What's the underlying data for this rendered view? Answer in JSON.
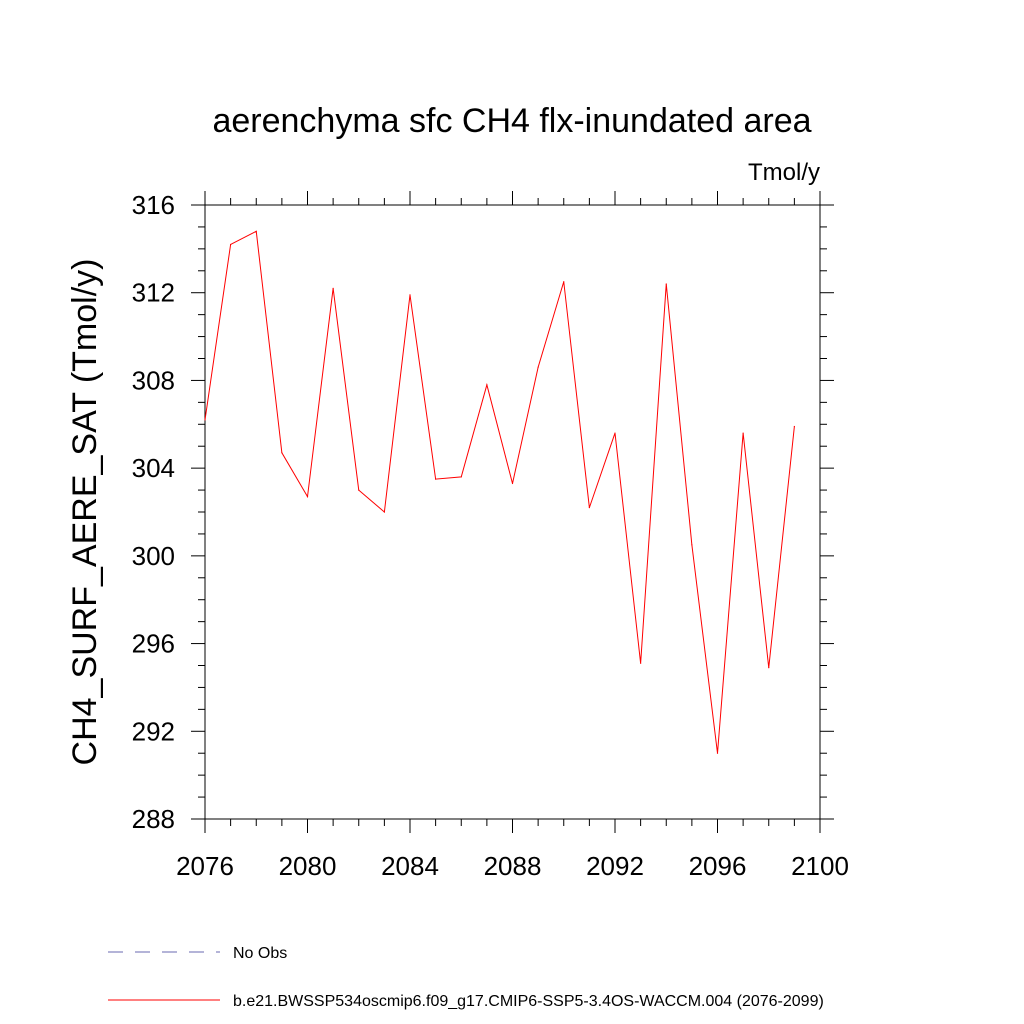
{
  "chart_data": {
    "type": "line",
    "title": "aerenchyma sfc CH4 flx-inundated area",
    "units": "Tmol/y",
    "ylabel": "CH4_SURF_AERE_SAT  (Tmol/y)",
    "xlabel": "",
    "xlim": [
      2076,
      2100
    ],
    "ylim": [
      288,
      316
    ],
    "x_major_ticks": [
      2076,
      2080,
      2084,
      2088,
      2092,
      2096,
      2100
    ],
    "y_major_ticks": [
      288,
      292,
      296,
      300,
      304,
      308,
      312,
      316
    ],
    "x": [
      2076,
      2077,
      2078,
      2079,
      2080,
      2081,
      2082,
      2083,
      2084,
      2085,
      2086,
      2087,
      2088,
      2089,
      2090,
      2091,
      2092,
      2093,
      2094,
      2095,
      2096,
      2097,
      2098,
      2099
    ],
    "series": [
      {
        "name": "b.e21.BWSSP534oscmip6.f09_g17.CMIP6-SSP5-3.4OS-WACCM.004 (2076-2099)",
        "color": "#ff0000",
        "dash": "solid",
        "values": [
          306.2,
          314.2,
          314.8,
          304.7,
          302.7,
          312.2,
          303.0,
          302.0,
          311.9,
          303.5,
          303.6,
          307.8,
          303.3,
          308.6,
          312.5,
          302.2,
          305.6,
          295.1,
          312.4,
          300.5,
          291.0,
          305.6,
          294.9,
          305.9
        ]
      }
    ],
    "legend": [
      {
        "label": "No Obs",
        "color": "#6a6ab0",
        "dash": "dashed"
      },
      {
        "label": "b.e21.BWSSP534oscmip6.f09_g17.CMIP6-SSP5-3.4OS-WACCM.004 (2076-2099)",
        "color": "#ff0000",
        "dash": "solid"
      }
    ],
    "legend_position": "bottom-left",
    "grid": false
  }
}
